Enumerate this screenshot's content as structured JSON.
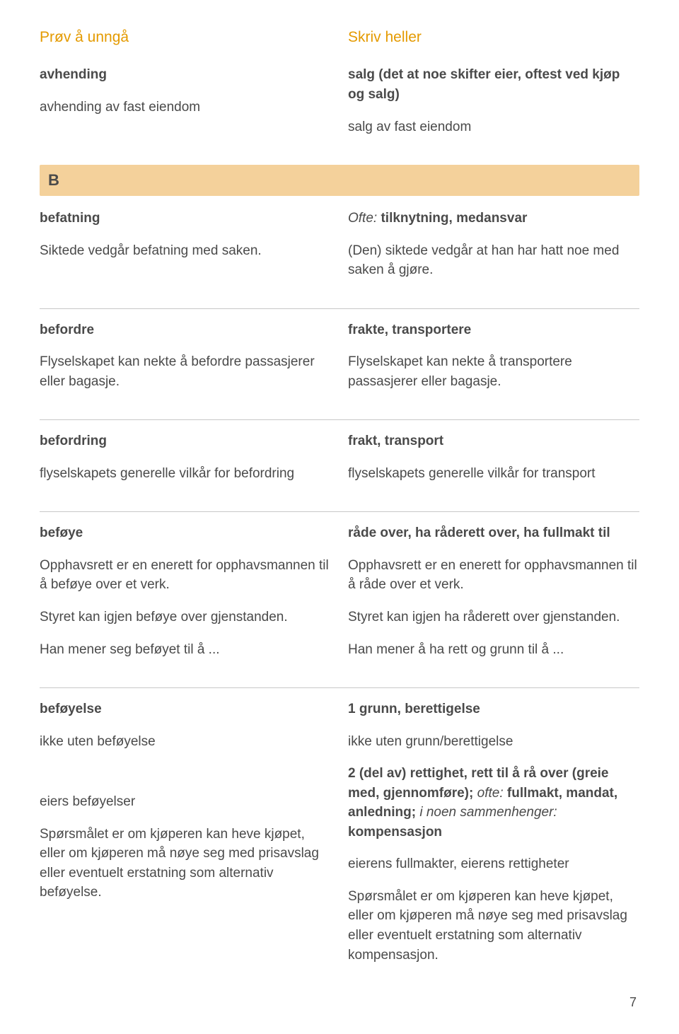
{
  "header": {
    "left": "Prøv å unngå",
    "right": "Skriv heller"
  },
  "entries": [
    {
      "left": [
        {
          "text": "avhending",
          "bold": true
        },
        {
          "text": "avhending av fast eiendom"
        }
      ],
      "right": [
        {
          "text": "salg (det at noe skifter eier, oftest ved kjøp og salg)",
          "bold": true
        },
        {
          "text": "salg av fast eiendom"
        }
      ]
    }
  ],
  "sectionLetter": "B",
  "sectionEntries": [
    {
      "left": [
        {
          "text": "befatning",
          "bold": true
        },
        {
          "text": "Siktede vedgår befatning med saken."
        }
      ],
      "right": [
        {
          "italPrefix": "Ofte:",
          "text": " tilknytning, medansvar",
          "bold": true
        },
        {
          "text": "(Den) siktede vedgår at han har hatt noe med saken å gjøre."
        }
      ],
      "divider": true
    },
    {
      "left": [
        {
          "text": "befordre",
          "bold": true
        },
        {
          "text": "Flyselskapet kan nekte å befordre passasjerer eller bagasje."
        }
      ],
      "right": [
        {
          "text": "frakte, transportere",
          "bold": true
        },
        {
          "text": "Flyselskapet kan nekte å transportere passasjerer eller bagasje."
        }
      ],
      "divider": true
    },
    {
      "left": [
        {
          "text": "befordring",
          "bold": true
        },
        {
          "text": "flyselskapets generelle vilkår for befordring"
        }
      ],
      "right": [
        {
          "text": "frakt, transport",
          "bold": true
        },
        {
          "text": "flyselskapets generelle vilkår for transport"
        }
      ],
      "divider": true
    },
    {
      "left": [
        {
          "text": "beføye",
          "bold": true
        },
        {
          "text": "Opphavsrett er en enerett for opphavsmannen til å beføye over et verk."
        },
        {
          "text": "Styret kan igjen beføye over gjenstanden."
        },
        {
          "text": "Han mener seg beføyet til å ..."
        }
      ],
      "right": [
        {
          "text": "råde over, ha råderett over, ha fullmakt til",
          "bold": true
        },
        {
          "text": "Opphavsrett er en enerett for opphavsmannen til å råde over et verk."
        },
        {
          "text": "Styret kan igjen ha råderett over gjenstanden."
        },
        {
          "text": "Han mener å ha rett og grunn til å ..."
        }
      ],
      "divider": true
    },
    {
      "left": [
        {
          "text": "beføyelse",
          "bold": true
        },
        {
          "text": "ikke uten beføyelse"
        },
        {
          "gap": true
        },
        {
          "gap": true
        },
        {
          "text": "eiers beføyelser"
        },
        {
          "text": "Spørsmålet er om kjøperen kan heve kjøpet, eller om kjøperen må nøye seg med prisavslag eller eventuelt erstatning som alternativ beføyelse."
        }
      ],
      "right": [
        {
          "text": "1 grunn, berettigelse",
          "bold": true
        },
        {
          "text": "ikke uten grunn/berettigelse"
        },
        {
          "html": "<span class='term'>2 (del av) rettighet, rett til å rå over (greie med, gjennomføre);</span> <span class='ital-prefix'>ofte:</span> <span class='term'>fullmakt, mandat, anledning;</span> <span class='ital-prefix'>i noen sammenhenger:</span> <span class='term'>kompensasjon</span>"
        },
        {
          "text": "eierens fullmakter, eierens rettigheter"
        },
        {
          "text": "Spørsmålet er om kjøperen kan heve kjøpet, eller om kjøperen må nøye seg med prisavslag eller eventuelt erstatning som alternativ kompensasjon."
        }
      ]
    }
  ],
  "pageNumber": "7"
}
